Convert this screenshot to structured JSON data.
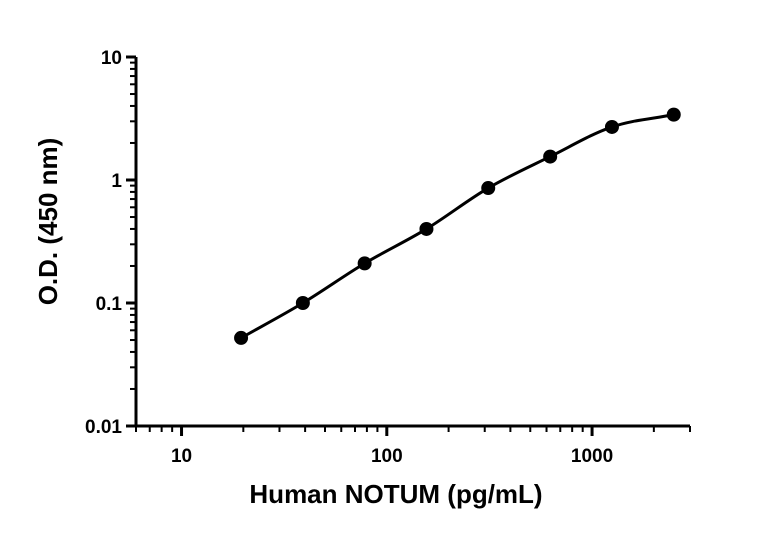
{
  "chart_data": {
    "type": "scatter",
    "title": "",
    "xlabel": "Human NOTUM (pg/mL)",
    "ylabel": "O.D. (450 nm)",
    "xscale": "log",
    "yscale": "log",
    "xlim": [
      6,
      3000
    ],
    "ylim": [
      0.01,
      10
    ],
    "xticks": [
      {
        "value": 10,
        "label": "10"
      },
      {
        "value": 100,
        "label": "100"
      },
      {
        "value": 1000,
        "label": "1000"
      }
    ],
    "yticks": [
      {
        "value": 0.01,
        "label": "0.01"
      },
      {
        "value": 0.1,
        "label": "0.1"
      },
      {
        "value": 1,
        "label": "1"
      },
      {
        "value": 10,
        "label": "10"
      }
    ],
    "grid": false,
    "legend": "none",
    "series": [
      {
        "x": [
          19.5,
          39,
          78,
          156,
          312,
          625,
          1250,
          2500
        ],
        "y": [
          0.052,
          0.1,
          0.21,
          0.4,
          0.86,
          1.55,
          2.7,
          3.4
        ],
        "color": "#000000",
        "marker": "circle",
        "fit_line": true
      }
    ]
  }
}
